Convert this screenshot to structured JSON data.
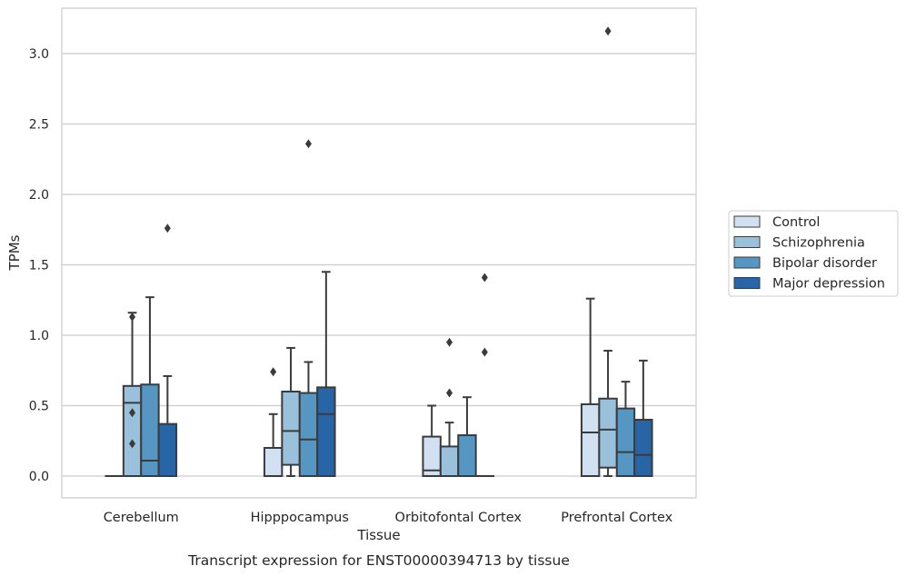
{
  "chart_data": {
    "type": "box",
    "title": "",
    "caption": "Transcript expression for ENST00000394713 by tissue",
    "xlabel": "Tissue",
    "ylabel": "TPMs",
    "ylim": [
      -0.15,
      3.32
    ],
    "yticks": [
      0.0,
      0.5,
      1.0,
      1.5,
      2.0,
      2.5,
      3.0
    ],
    "ytick_labels": [
      "0.0",
      "0.5",
      "1.0",
      "1.5",
      "2.0",
      "2.5",
      "3.0"
    ],
    "grid": "horizontal",
    "legend_position": "right",
    "categories": [
      "Cerebellum",
      "Hipppocampus",
      "Orbitofontal Cortex",
      "Prefrontal Cortex"
    ],
    "series": [
      {
        "name": "Control",
        "color": "#d1e1f1",
        "boxes": [
          {
            "q1": 0.0,
            "median": 0.0,
            "q3": 0.0,
            "whisker_low": 0.0,
            "whisker_high": 0.0,
            "outliers": []
          },
          {
            "q1": 0.0,
            "median": 0.0,
            "q3": 0.2,
            "whisker_low": 0.0,
            "whisker_high": 0.44,
            "outliers": [
              0.74
            ]
          },
          {
            "q1": 0.0,
            "median": 0.04,
            "q3": 0.28,
            "whisker_low": 0.0,
            "whisker_high": 0.5,
            "outliers": []
          },
          {
            "q1": 0.0,
            "median": 0.31,
            "q3": 0.51,
            "whisker_low": 0.0,
            "whisker_high": 1.26,
            "outliers": []
          }
        ]
      },
      {
        "name": "Schizophrenia",
        "color": "#99c1dc",
        "boxes": [
          {
            "q1": 0.0,
            "median": 0.52,
            "q3": 0.64,
            "whisker_low": 0.0,
            "whisker_high": 1.16,
            "outliers": [
              0.23,
              0.45,
              1.13
            ]
          },
          {
            "q1": 0.08,
            "median": 0.32,
            "q3": 0.6,
            "whisker_low": 0.0,
            "whisker_high": 0.91,
            "outliers": []
          },
          {
            "q1": 0.0,
            "median": 0.0,
            "q3": 0.21,
            "whisker_low": 0.0,
            "whisker_high": 0.38,
            "outliers": [
              0.59,
              0.95
            ]
          },
          {
            "q1": 0.06,
            "median": 0.33,
            "q3": 0.55,
            "whisker_low": 0.0,
            "whisker_high": 0.89,
            "outliers": [
              3.16
            ]
          }
        ]
      },
      {
        "name": "Bipolar disorder",
        "color": "#5696c3",
        "boxes": [
          {
            "q1": 0.0,
            "median": 0.11,
            "q3": 0.65,
            "whisker_low": 0.0,
            "whisker_high": 1.27,
            "outliers": []
          },
          {
            "q1": 0.0,
            "median": 0.26,
            "q3": 0.59,
            "whisker_low": 0.0,
            "whisker_high": 0.81,
            "outliers": [
              2.36
            ]
          },
          {
            "q1": 0.0,
            "median": 0.0,
            "q3": 0.29,
            "whisker_low": 0.0,
            "whisker_high": 0.56,
            "outliers": []
          },
          {
            "q1": 0.0,
            "median": 0.17,
            "q3": 0.48,
            "whisker_low": 0.0,
            "whisker_high": 0.67,
            "outliers": []
          }
        ]
      },
      {
        "name": "Major depression",
        "color": "#2765a6",
        "boxes": [
          {
            "q1": 0.0,
            "median": 0.0,
            "q3": 0.37,
            "whisker_low": 0.0,
            "whisker_high": 0.71,
            "outliers": [
              1.76
            ]
          },
          {
            "q1": 0.0,
            "median": 0.44,
            "q3": 0.63,
            "whisker_low": 0.0,
            "whisker_high": 1.45,
            "outliers": []
          },
          {
            "q1": 0.0,
            "median": 0.0,
            "q3": 0.0,
            "whisker_low": 0.0,
            "whisker_high": 0.0,
            "outliers": [
              0.88,
              1.41
            ]
          },
          {
            "q1": 0.0,
            "median": 0.15,
            "q3": 0.4,
            "whisker_low": 0.0,
            "whisker_high": 0.82,
            "outliers": []
          }
        ]
      }
    ]
  }
}
